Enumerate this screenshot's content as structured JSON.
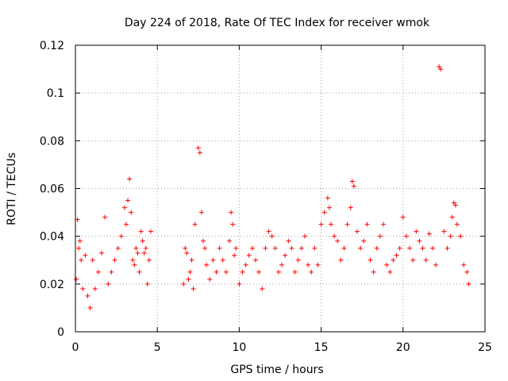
{
  "chart_data": {
    "type": "scatter",
    "title": "Day 224 of 2018, Rate Of TEC Index for receiver wmok",
    "xlabel": "GPS time / hours",
    "ylabel": "ROTI / TECUs",
    "xlim": [
      0,
      25
    ],
    "ylim": [
      0,
      0.12
    ],
    "x_ticks": [
      "0",
      "5",
      "10",
      "15",
      "20",
      "25"
    ],
    "y_ticks": [
      "0",
      "0.02",
      "0.04",
      "0.06",
      "0.08",
      "0.1",
      "0.12"
    ],
    "grid": true,
    "marker": "plus",
    "color": "#ff0000",
    "series": [
      {
        "x": [
          0.05,
          0.12,
          0.2,
          0.28,
          0.35,
          0.45,
          0.6,
          0.75,
          0.9,
          1.05,
          1.2,
          1.4,
          1.6,
          1.8,
          2.0,
          2.2,
          2.4,
          2.6,
          2.8,
          3.0,
          3.1,
          3.2,
          3.3,
          3.4,
          3.5,
          3.6,
          3.7,
          3.8,
          3.9,
          4.0,
          4.1,
          4.2,
          4.3,
          4.4,
          4.5,
          4.6,
          6.6,
          6.7,
          6.8,
          6.9,
          7.0,
          7.1,
          7.2,
          7.3,
          7.5,
          7.6,
          7.7,
          7.8,
          7.9,
          8.0,
          8.2,
          8.4,
          8.6,
          8.8,
          9.0,
          9.2,
          9.4,
          9.5,
          9.6,
          9.7,
          9.8,
          10.0,
          10.2,
          10.4,
          10.6,
          10.8,
          11.0,
          11.2,
          11.4,
          11.6,
          11.8,
          12.0,
          12.2,
          12.4,
          12.6,
          12.8,
          13.0,
          13.2,
          13.4,
          13.6,
          13.8,
          14.0,
          14.2,
          14.4,
          14.6,
          14.8,
          15.0,
          15.2,
          15.4,
          15.5,
          15.6,
          15.8,
          16.0,
          16.2,
          16.4,
          16.6,
          16.8,
          16.9,
          17.0,
          17.2,
          17.4,
          17.6,
          17.8,
          18.0,
          18.2,
          18.4,
          18.6,
          18.8,
          19.0,
          19.2,
          19.4,
          19.6,
          19.8,
          20.0,
          20.2,
          20.4,
          20.6,
          20.8,
          21.0,
          21.2,
          21.4,
          21.6,
          21.8,
          22.0,
          22.2,
          22.3,
          22.5,
          22.7,
          22.9,
          23.0,
          23.1,
          23.2,
          23.3,
          23.5,
          23.7,
          23.9,
          24.0
        ],
        "y": [
          0.022,
          0.047,
          0.035,
          0.038,
          0.03,
          0.018,
          0.032,
          0.015,
          0.01,
          0.03,
          0.018,
          0.025,
          0.033,
          0.048,
          0.02,
          0.025,
          0.03,
          0.035,
          0.04,
          0.052,
          0.045,
          0.055,
          0.064,
          0.05,
          0.03,
          0.028,
          0.035,
          0.033,
          0.025,
          0.042,
          0.038,
          0.033,
          0.035,
          0.02,
          0.03,
          0.042,
          0.02,
          0.035,
          0.033,
          0.022,
          0.025,
          0.03,
          0.018,
          0.045,
          0.077,
          0.075,
          0.05,
          0.038,
          0.035,
          0.028,
          0.022,
          0.03,
          0.025,
          0.035,
          0.03,
          0.025,
          0.038,
          0.05,
          0.045,
          0.032,
          0.035,
          0.02,
          0.025,
          0.028,
          0.032,
          0.035,
          0.03,
          0.025,
          0.018,
          0.035,
          0.042,
          0.04,
          0.035,
          0.025,
          0.028,
          0.032,
          0.038,
          0.035,
          0.025,
          0.03,
          0.035,
          0.04,
          0.028,
          0.025,
          0.035,
          0.028,
          0.045,
          0.05,
          0.056,
          0.052,
          0.045,
          0.04,
          0.038,
          0.03,
          0.035,
          0.045,
          0.052,
          0.063,
          0.061,
          0.042,
          0.035,
          0.038,
          0.045,
          0.03,
          0.025,
          0.035,
          0.04,
          0.045,
          0.028,
          0.025,
          0.03,
          0.032,
          0.035,
          0.048,
          0.04,
          0.035,
          0.03,
          0.042,
          0.038,
          0.035,
          0.03,
          0.041,
          0.035,
          0.028,
          0.111,
          0.11,
          0.042,
          0.035,
          0.04,
          0.048,
          0.054,
          0.053,
          0.045,
          0.04,
          0.028,
          0.025,
          0.02
        ]
      }
    ]
  }
}
